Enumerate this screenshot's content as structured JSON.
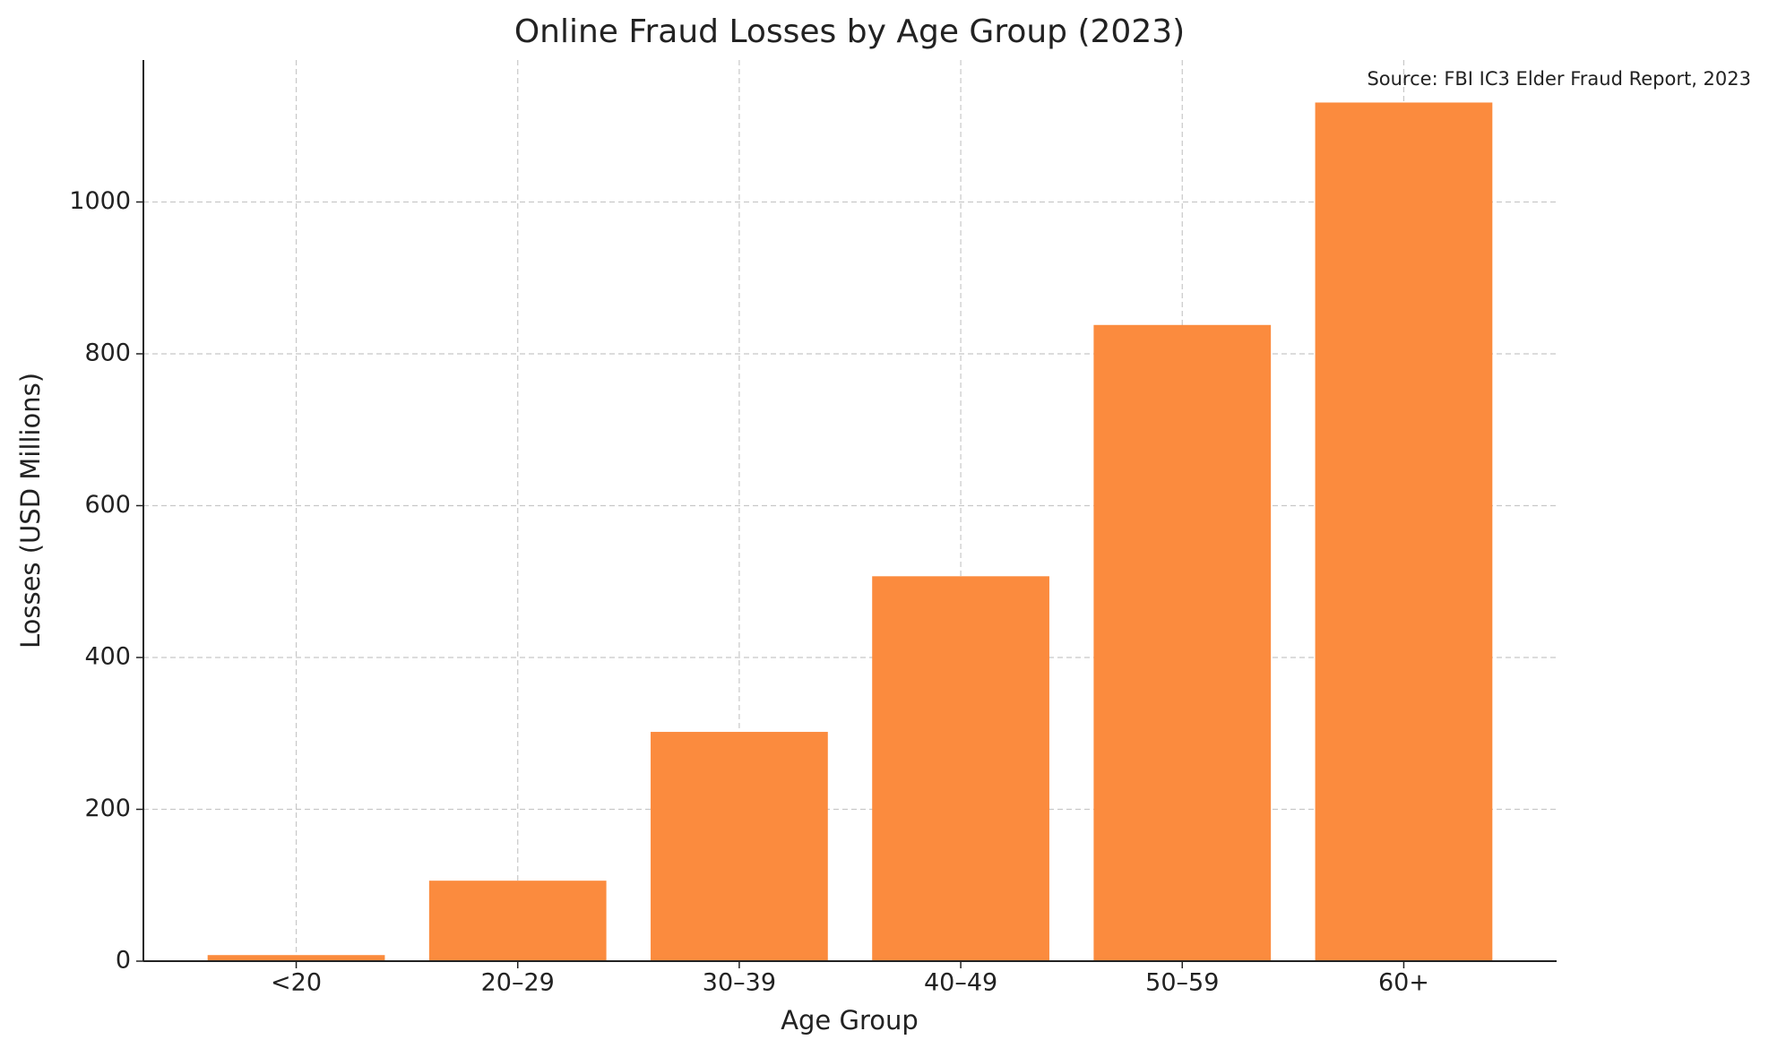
{
  "chart_data": {
    "type": "bar",
    "title": "Online Fraud Losses by Age Group (2023)",
    "x_label": "Age Group",
    "y_label": "Losses (USD Millions)",
    "annotation": "Source: FBI IC3 Elder Fraud Report, 2023",
    "categories": [
      "<20",
      "20–29",
      "30–39",
      "40–49",
      "50–59",
      "60+"
    ],
    "values": [
      8,
      106,
      302,
      507,
      838,
      1131
    ],
    "color": "#fb8b3e",
    "ylim": [
      0,
      1187
    ],
    "yticks": [
      0,
      200,
      400,
      600,
      800,
      1000
    ],
    "grid": true
  }
}
